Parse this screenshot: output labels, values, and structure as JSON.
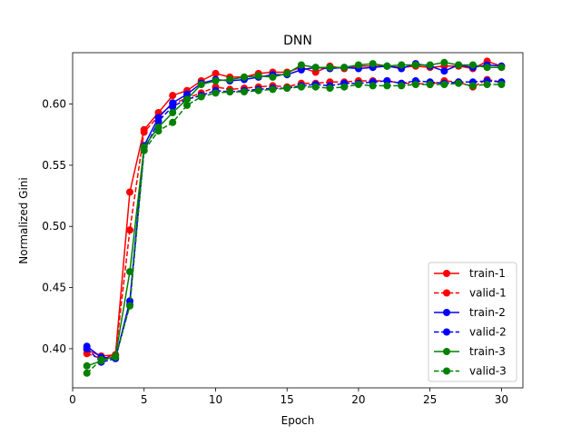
{
  "chart_data": {
    "type": "line",
    "title": "DNN",
    "xlabel": "Epoch",
    "ylabel": "Normalized Gini",
    "xlim": [
      0,
      31.5
    ],
    "ylim": [
      0.368,
      0.642
    ],
    "xticks": [
      0,
      5,
      10,
      15,
      20,
      25,
      30
    ],
    "yticks": [
      0.4,
      0.45,
      0.5,
      0.55,
      0.6
    ],
    "ytick_labels": [
      "0.40",
      "0.45",
      "0.50",
      "0.55",
      "0.60"
    ],
    "legend_position": "lower-right",
    "x": [
      1,
      2,
      3,
      4,
      5,
      6,
      7,
      8,
      9,
      10,
      11,
      12,
      13,
      14,
      15,
      16,
      17,
      18,
      19,
      20,
      21,
      22,
      23,
      24,
      25,
      26,
      27,
      28,
      29,
      30
    ],
    "series": [
      {
        "name": "train-1",
        "color": "#ff0000",
        "style": "solid",
        "values": [
          0.399,
          0.394,
          0.395,
          0.528,
          0.579,
          0.593,
          0.607,
          0.611,
          0.619,
          0.625,
          0.622,
          0.622,
          0.625,
          0.626,
          0.626,
          0.63,
          0.626,
          0.631,
          0.629,
          0.631,
          0.631,
          0.631,
          0.63,
          0.631,
          0.63,
          0.631,
          0.631,
          0.629,
          0.635,
          0.631
        ]
      },
      {
        "name": "valid-1",
        "color": "#ff0000",
        "style": "dashed",
        "values": [
          0.396,
          0.392,
          0.395,
          0.497,
          0.577,
          0.59,
          0.6,
          0.605,
          0.609,
          0.614,
          0.612,
          0.613,
          0.614,
          0.615,
          0.614,
          0.617,
          0.617,
          0.618,
          0.618,
          0.619,
          0.619,
          0.619,
          0.617,
          0.617,
          0.616,
          0.619,
          0.618,
          0.614,
          0.62,
          0.618
        ]
      },
      {
        "name": "train-2",
        "color": "#0000ff",
        "style": "solid",
        "values": [
          0.402,
          0.393,
          0.392,
          0.439,
          0.566,
          0.589,
          0.601,
          0.608,
          0.617,
          0.62,
          0.619,
          0.62,
          0.622,
          0.624,
          0.624,
          0.628,
          0.63,
          0.629,
          0.63,
          0.629,
          0.63,
          0.631,
          0.629,
          0.633,
          0.631,
          0.627,
          0.632,
          0.63,
          0.632,
          0.631
        ]
      },
      {
        "name": "valid-2",
        "color": "#0000ff",
        "style": "dashed",
        "values": [
          0.4,
          0.389,
          0.392,
          0.436,
          0.562,
          0.586,
          0.598,
          0.604,
          0.607,
          0.611,
          0.61,
          0.611,
          0.612,
          0.613,
          0.613,
          0.615,
          0.616,
          0.615,
          0.617,
          0.617,
          0.618,
          0.619,
          0.617,
          0.619,
          0.618,
          0.617,
          0.618,
          0.618,
          0.619,
          0.618
        ]
      },
      {
        "name": "train-3",
        "color": "#008000",
        "style": "solid",
        "values": [
          0.386,
          0.39,
          0.394,
          0.463,
          0.565,
          0.581,
          0.593,
          0.604,
          0.616,
          0.619,
          0.62,
          0.622,
          0.623,
          0.622,
          0.625,
          0.632,
          0.63,
          0.63,
          0.63,
          0.632,
          0.633,
          0.631,
          0.632,
          0.632,
          0.632,
          0.634,
          0.632,
          0.632,
          0.63,
          0.63
        ]
      },
      {
        "name": "valid-3",
        "color": "#008000",
        "style": "dashed",
        "values": [
          0.38,
          0.391,
          0.393,
          0.435,
          0.562,
          0.578,
          0.585,
          0.599,
          0.606,
          0.609,
          0.61,
          0.61,
          0.611,
          0.612,
          0.613,
          0.614,
          0.614,
          0.613,
          0.614,
          0.616,
          0.615,
          0.615,
          0.615,
          0.616,
          0.616,
          0.616,
          0.617,
          0.615,
          0.616,
          0.616
        ]
      }
    ]
  }
}
